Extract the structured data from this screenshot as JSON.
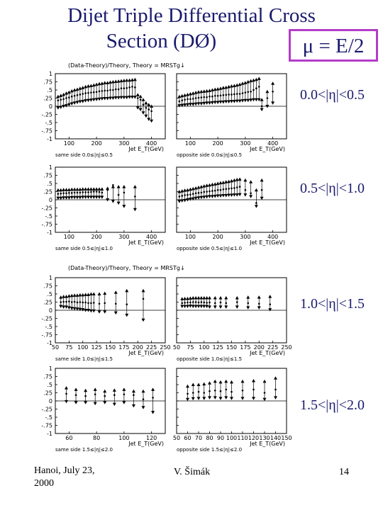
{
  "slide": {
    "title_line1": "Dijet Triple Differential Cross",
    "title_line2": "Section (DØ)",
    "mu_label": "μ = E/2",
    "header_top": "(Data-Theory)/Theory,  Theory = MRSTg↓",
    "header_bottom": "(Data-Theory)/Theory,  Theory = MRSTg↓",
    "eta_bins": [
      "0.0<|η|<0.5",
      "0.5<|η|<1.0",
      "1.0<|η|<1.5",
      "1.5<|η|<2.0"
    ],
    "footer_left": "Hanoi, July 23,\n2000",
    "footer_center": "V. Šimák",
    "footer_right": "14"
  },
  "chart_data": [
    {
      "type": "scatter",
      "panel": "same side 0.0≤|η|≤0.5",
      "xlabel": "Jet E_T(GeV)",
      "xlim": [
        50,
        450
      ],
      "ylim": [
        -1,
        1
      ],
      "xticks": [
        100,
        200,
        300,
        400
      ],
      "yticks": [
        -1,
        -0.75,
        -0.5,
        -0.25,
        0,
        0.25,
        0.5,
        0.75,
        1
      ],
      "x": [
        60,
        70,
        80,
        90,
        100,
        110,
        120,
        130,
        140,
        150,
        160,
        170,
        180,
        190,
        200,
        210,
        220,
        230,
        240,
        250,
        260,
        270,
        280,
        290,
        300,
        310,
        320,
        330,
        340,
        350,
        360,
        370,
        380,
        390,
        400
      ],
      "values": [
        0.18,
        0.2,
        0.22,
        0.25,
        0.27,
        0.3,
        0.32,
        0.34,
        0.36,
        0.38,
        0.4,
        0.41,
        0.42,
        0.43,
        0.44,
        0.46,
        0.47,
        0.48,
        0.48,
        0.5,
        0.5,
        0.52,
        0.52,
        0.55,
        0.55,
        0.56,
        0.58,
        0.6,
        0.58,
        0.25,
        0.2,
        0.05,
        -0.05,
        -0.1,
        -0.15
      ],
      "lower_band": [
        -0.05,
        -0.03,
        0,
        0.02,
        0.05,
        0.08,
        0.1,
        0.12,
        0.14,
        0.15,
        0.17,
        0.18,
        0.19,
        0.2,
        0.21,
        0.22,
        0.23,
        0.24,
        0.24,
        0.25,
        0.25,
        0.26,
        0.26,
        0.27,
        0.27,
        0.27,
        0.28,
        0.28,
        0.28,
        -0.05,
        -0.1,
        -0.2,
        -0.3,
        -0.4,
        -0.45
      ],
      "upper_band": [
        0.3,
        0.33,
        0.36,
        0.4,
        0.43,
        0.47,
        0.5,
        0.52,
        0.55,
        0.57,
        0.6,
        0.62,
        0.63,
        0.65,
        0.67,
        0.69,
        0.7,
        0.72,
        0.72,
        0.74,
        0.75,
        0.76,
        0.77,
        0.78,
        0.79,
        0.8,
        0.8,
        0.81,
        0.82,
        0.35,
        0.3,
        0.2,
        0.1,
        0.05,
        0
      ]
    },
    {
      "type": "scatter",
      "panel": "opposite side 0.0≤|η|≤0.5",
      "xlabel": "Jet E_T(GeV)",
      "xlim": [
        50,
        450
      ],
      "ylim": [
        -1,
        1
      ],
      "xticks": [
        100,
        200,
        300,
        400
      ],
      "yticks": [
        -1,
        -0.75,
        -0.5,
        -0.25,
        0,
        0.25,
        0.5,
        0.75,
        1
      ],
      "x": [
        60,
        70,
        80,
        90,
        100,
        110,
        120,
        130,
        140,
        150,
        160,
        170,
        180,
        190,
        200,
        210,
        220,
        230,
        240,
        250,
        260,
        270,
        280,
        290,
        300,
        310,
        320,
        330,
        340,
        350,
        360,
        380,
        400
      ],
      "values": [
        0.15,
        0.18,
        0.2,
        0.22,
        0.22,
        0.23,
        0.25,
        0.26,
        0.27,
        0.28,
        0.28,
        0.3,
        0.3,
        0.32,
        0.32,
        0.33,
        0.34,
        0.35,
        0.36,
        0.36,
        0.37,
        0.38,
        0.38,
        0.4,
        0.42,
        0.44,
        0.45,
        0.5,
        0.55,
        0.6,
        0.0,
        0.25,
        0.45
      ],
      "lower_band": [
        0.02,
        0.03,
        0.04,
        0.05,
        0.06,
        0.06,
        0.07,
        0.08,
        0.08,
        0.09,
        0.1,
        0.1,
        0.11,
        0.12,
        0.12,
        0.13,
        0.13,
        0.14,
        0.14,
        0.15,
        0.15,
        0.16,
        0.16,
        0.17,
        0.18,
        0.18,
        0.19,
        0.2,
        0.2,
        0.2,
        -0.1,
        0,
        0.1
      ],
      "upper_band": [
        0.3,
        0.32,
        0.34,
        0.36,
        0.38,
        0.4,
        0.42,
        0.44,
        0.45,
        0.46,
        0.47,
        0.48,
        0.5,
        0.52,
        0.53,
        0.55,
        0.57,
        0.58,
        0.6,
        0.62,
        0.63,
        0.65,
        0.67,
        0.7,
        0.72,
        0.75,
        0.78,
        0.8,
        0.82,
        0.85,
        0.2,
        0.45,
        0.7
      ]
    },
    {
      "type": "scatter",
      "panel": "same side 0.5≤|η|≤1.0",
      "xlabel": "Jet E_T(GeV)",
      "xlim": [
        50,
        450
      ],
      "ylim": [
        -1,
        1
      ],
      "xticks": [
        100,
        200,
        300,
        400
      ],
      "yticks": [
        -1,
        -0.75,
        -0.5,
        -0.25,
        0,
        0.25,
        0.5,
        0.75,
        1
      ],
      "x": [
        60,
        70,
        80,
        90,
        100,
        110,
        120,
        130,
        140,
        150,
        160,
        170,
        180,
        190,
        200,
        210,
        220,
        240,
        260,
        280,
        300,
        340
      ],
      "values": [
        0.18,
        0.19,
        0.2,
        0.2,
        0.21,
        0.21,
        0.22,
        0.22,
        0.22,
        0.23,
        0.23,
        0.23,
        0.24,
        0.25,
        0.25,
        0.24,
        0.22,
        0.3,
        0.45,
        0.15,
        0.22,
        0.1
      ],
      "lower_band": [
        0.05,
        0.05,
        0.06,
        0.06,
        0.06,
        0.07,
        0.07,
        0.07,
        0.07,
        0.08,
        0.08,
        0.08,
        0.08,
        0.08,
        0.08,
        0.08,
        0.08,
        0.0,
        -0.05,
        -0.1,
        -0.2,
        -0.3
      ],
      "upper_band": [
        0.3,
        0.3,
        0.31,
        0.31,
        0.31,
        0.32,
        0.32,
        0.32,
        0.32,
        0.33,
        0.33,
        0.33,
        0.33,
        0.33,
        0.33,
        0.33,
        0.33,
        0.35,
        0.4,
        0.4,
        0.4,
        0.4
      ]
    },
    {
      "type": "scatter",
      "panel": "opposite side 0.5≤|η|≤1.0",
      "xlabel": "Jet E_T(GeV)",
      "xlim": [
        50,
        450
      ],
      "ylim": [
        -1,
        1
      ],
      "xticks": [
        100,
        200,
        300,
        400
      ],
      "yticks": [
        -1,
        -0.75,
        -0.5,
        -0.25,
        0,
        0.25,
        0.5,
        0.75,
        1
      ],
      "x": [
        60,
        70,
        80,
        90,
        100,
        110,
        120,
        130,
        140,
        150,
        160,
        170,
        180,
        190,
        200,
        210,
        220,
        230,
        240,
        250,
        260,
        270,
        280,
        300,
        320,
        340,
        360
      ],
      "values": [
        0.1,
        0.12,
        0.14,
        0.15,
        0.16,
        0.18,
        0.2,
        0.21,
        0.22,
        0.24,
        0.25,
        0.26,
        0.27,
        0.28,
        0.3,
        0.3,
        0.32,
        0.33,
        0.34,
        0.35,
        0.36,
        0.38,
        0.4,
        0.3,
        0.2,
        -0.1,
        0.3
      ],
      "lower_band": [
        -0.05,
        -0.03,
        -0.02,
        0.0,
        0.02,
        0.03,
        0.05,
        0.06,
        0.07,
        0.08,
        0.09,
        0.1,
        0.1,
        0.11,
        0.12,
        0.12,
        0.13,
        0.13,
        0.14,
        0.14,
        0.15,
        0.15,
        0.16,
        0.15,
        0.1,
        -0.2,
        0.05
      ],
      "upper_band": [
        0.25,
        0.27,
        0.29,
        0.3,
        0.32,
        0.34,
        0.36,
        0.38,
        0.4,
        0.42,
        0.44,
        0.45,
        0.47,
        0.48,
        0.5,
        0.52,
        0.53,
        0.55,
        0.56,
        0.58,
        0.6,
        0.62,
        0.63,
        0.6,
        0.55,
        0.3,
        0.6
      ]
    },
    {
      "type": "scatter",
      "panel": "same side 1.0≤|η|≤1.5",
      "xlabel": "Jet E_T(GeV)",
      "xlim": [
        50,
        250
      ],
      "ylim": [
        -1,
        1
      ],
      "xticks": [
        50,
        75,
        100,
        125,
        150,
        175,
        200,
        225,
        250
      ],
      "yticks": [
        -1,
        -0.75,
        -0.5,
        -0.25,
        0,
        0.25,
        0.5,
        0.75,
        1
      ],
      "x": [
        60,
        65,
        70,
        75,
        80,
        85,
        90,
        95,
        100,
        105,
        110,
        115,
        120,
        130,
        140,
        160,
        180,
        210
      ],
      "values": [
        0.25,
        0.26,
        0.26,
        0.27,
        0.25,
        0.26,
        0.24,
        0.25,
        0.24,
        0.24,
        0.22,
        0.22,
        0.23,
        0.2,
        0.22,
        0.2,
        0.18,
        0.35
      ],
      "lower_band": [
        0.12,
        0.1,
        0.1,
        0.08,
        0.06,
        0.05,
        0.04,
        0.03,
        0.02,
        0.0,
        0.0,
        -0.02,
        -0.02,
        -0.05,
        -0.05,
        -0.08,
        -0.15,
        -0.3
      ],
      "upper_band": [
        0.4,
        0.42,
        0.42,
        0.44,
        0.45,
        0.46,
        0.46,
        0.47,
        0.47,
        0.48,
        0.48,
        0.5,
        0.5,
        0.5,
        0.52,
        0.55,
        0.6,
        0.6
      ]
    },
    {
      "type": "scatter",
      "panel": "opposite side 1.0≤|η|≤1.5",
      "xlabel": "Jet E_T(GeV)",
      "xlim": [
        50,
        250
      ],
      "ylim": [
        -1,
        1
      ],
      "xticks": [
        50,
        75,
        100,
        125,
        150,
        175,
        200,
        225,
        250
      ],
      "yticks": [
        -1,
        -0.75,
        -0.5,
        -0.25,
        0,
        0.25,
        0.5,
        0.75,
        1
      ],
      "x": [
        60,
        65,
        70,
        75,
        80,
        85,
        90,
        95,
        100,
        105,
        110,
        120,
        130,
        140,
        160,
        180,
        200,
        220
      ],
      "values": [
        0.22,
        0.23,
        0.24,
        0.24,
        0.25,
        0.25,
        0.24,
        0.25,
        0.24,
        0.23,
        0.24,
        0.22,
        0.24,
        0.22,
        0.25,
        0.22,
        0.2,
        0.18
      ],
      "lower_band": [
        0.12,
        0.12,
        0.12,
        0.13,
        0.12,
        0.12,
        0.12,
        0.12,
        0.12,
        0.12,
        0.1,
        0.1,
        0.1,
        0.1,
        0.1,
        0.08,
        0.08,
        0.02
      ],
      "upper_band": [
        0.35,
        0.36,
        0.36,
        0.37,
        0.38,
        0.38,
        0.38,
        0.38,
        0.38,
        0.38,
        0.38,
        0.38,
        0.38,
        0.38,
        0.38,
        0.4,
        0.4,
        0.42
      ]
    },
    {
      "type": "scatter",
      "panel": "same side 1.5≤|η|≤2.0",
      "xlabel": "Jet E_T(GeV)",
      "xlim": [
        50,
        130
      ],
      "ylim": [
        -1,
        1
      ],
      "xticks": [
        60,
        80,
        100,
        120
      ],
      "yticks": [
        -1,
        -0.75,
        -0.5,
        -0.25,
        0,
        0.25,
        0.5,
        0.75,
        1
      ],
      "x": [
        58,
        65,
        72,
        79,
        86,
        93,
        100,
        107,
        114,
        121
      ],
      "values": [
        0.22,
        0.18,
        0.15,
        0.2,
        0.15,
        0.18,
        0.2,
        0.18,
        0.05,
        0.1
      ],
      "lower_band": [
        -0.02,
        -0.05,
        -0.05,
        -0.08,
        -0.05,
        -0.1,
        -0.05,
        -0.15,
        -0.2,
        -0.35
      ],
      "upper_band": [
        0.4,
        0.35,
        0.32,
        0.35,
        0.3,
        0.33,
        0.35,
        0.3,
        0.3,
        0.35
      ]
    },
    {
      "type": "scatter",
      "panel": "opposite side 1.5≤|η|≤2.0",
      "xlabel": "Jet E_T(GeV)",
      "xlim": [
        50,
        150
      ],
      "ylim": [
        -1,
        1
      ],
      "xticks": [
        50,
        60,
        70,
        80,
        90,
        100,
        110,
        120,
        130,
        140,
        150
      ],
      "yticks": [
        -1,
        -0.75,
        -0.5,
        -0.25,
        0,
        0.25,
        0.5,
        0.75,
        1
      ],
      "x": [
        60,
        65,
        70,
        75,
        80,
        85,
        90,
        95,
        100,
        110,
        120,
        130,
        140
      ],
      "values": [
        0.22,
        0.25,
        0.28,
        0.25,
        0.3,
        0.32,
        0.3,
        0.35,
        0.28,
        0.32,
        0.35,
        0.25,
        0.35
      ],
      "lower_band": [
        0.05,
        0.07,
        0.08,
        0.08,
        0.1,
        0.1,
        0.08,
        0.1,
        0.08,
        0.08,
        0.08,
        0.05,
        0.1
      ],
      "upper_band": [
        0.45,
        0.5,
        0.5,
        0.52,
        0.55,
        0.6,
        0.58,
        0.6,
        0.58,
        0.6,
        0.62,
        0.6,
        0.7
      ]
    }
  ]
}
